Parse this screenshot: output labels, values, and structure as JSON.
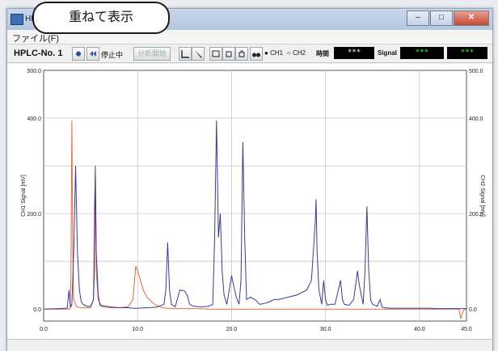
{
  "callout": {
    "text": "重ねて表示"
  },
  "window": {
    "title": "HPLC",
    "minimize": "–",
    "maximize": "□",
    "close": "✕"
  },
  "menu": {
    "file": "ファイル(F)"
  },
  "toolbar": {
    "device": "HPLC-No. 1",
    "status": "停止中",
    "disabled_button": "分析開始",
    "ch1": "CH1",
    "ch2": "CH2",
    "time_label": "時間",
    "time_value": "***",
    "signal_label": "Signal",
    "signal_ch1": "***",
    "signal_ch2": "***",
    "icons": [
      "record-dot-icon",
      "rewind-icon",
      "line-tool-icon",
      "pen-tool-icon",
      "window-icon",
      "stop-icon",
      "grab-icon",
      "binoculars-icon"
    ]
  },
  "chart_data": {
    "type": "line",
    "xlim": [
      0,
      45
    ],
    "x_ticks": [
      "0.0",
      "10.0",
      "20.0",
      "30.0",
      "40.0",
      "45.0"
    ],
    "x_tick_values": [
      0,
      10,
      20,
      30,
      40,
      45
    ],
    "left_axis": {
      "label": "CH1 Signal [mV]",
      "ylim": [
        -25,
        500
      ],
      "ticks": [
        "500.0",
        "400.0",
        "200.0",
        "0.0"
      ],
      "tick_values": [
        500,
        400,
        200,
        0
      ]
    },
    "right_axis": {
      "label": "CH2 Signal [mV]",
      "ylim": [
        -25,
        500
      ],
      "ticks": [
        "500.0",
        "400.0",
        "200.0",
        "0.0"
      ],
      "tick_values": [
        500,
        400,
        200,
        0
      ]
    },
    "grid": true,
    "colors": {
      "ch1": "#3a3a9a",
      "ch2": "#e86b3a"
    },
    "series": [
      {
        "key": "ch1",
        "x": [
          0,
          2.5,
          2.7,
          2.8,
          2.9,
          3.0,
          3.2,
          3.4,
          3.6,
          3.8,
          4.0,
          4.2,
          4.4,
          4.6,
          5.0,
          5.3,
          5.4,
          5.5,
          5.6,
          5.8,
          6.0,
          7,
          8,
          9,
          9.5,
          10,
          11,
          12,
          12.8,
          13.0,
          13.2,
          13.4,
          13.6,
          14.0,
          14.5,
          15.0,
          15.3,
          15.5,
          15.7,
          16.0,
          16.5,
          17,
          17.5,
          18.0,
          18.2,
          18.4,
          18.6,
          18.8,
          19.0,
          19.2,
          19.5,
          20.0,
          20.5,
          20.8,
          21.0,
          21.2,
          21.4,
          21.6,
          22.0,
          22.5,
          23.0,
          23.5,
          24.0,
          24.5,
          25,
          26,
          27,
          28,
          28.5,
          28.9,
          29.0,
          29.1,
          29.3,
          29.6,
          29.8,
          30.0,
          30.2,
          30.5,
          31,
          31.6,
          31.8,
          32.0,
          32.5,
          33,
          33.4,
          33.6,
          33.8,
          34.0,
          34.2,
          34.4,
          34.6,
          34.8,
          35.0,
          35.5,
          35.8,
          36.0,
          36.2,
          37,
          38,
          39,
          40,
          41,
          42,
          43,
          44,
          45
        ],
        "y": [
          0,
          2,
          40,
          15,
          5,
          10,
          120,
          300,
          120,
          40,
          15,
          10,
          8,
          6,
          6,
          20,
          80,
          300,
          120,
          30,
          8,
          5,
          3,
          3,
          2,
          2,
          3,
          4,
          10,
          40,
          140,
          40,
          10,
          5,
          40,
          38,
          28,
          12,
          8,
          6,
          5,
          5,
          6,
          10,
          150,
          395,
          150,
          200,
          80,
          30,
          10,
          70,
          25,
          10,
          60,
          350,
          150,
          20,
          25,
          20,
          10,
          12,
          15,
          20,
          20,
          25,
          30,
          40,
          60,
          180,
          230,
          120,
          40,
          10,
          60,
          20,
          8,
          10,
          10,
          60,
          20,
          10,
          8,
          20,
          80,
          50,
          30,
          10,
          80,
          215,
          80,
          20,
          10,
          6,
          20,
          5,
          3,
          2,
          2,
          2,
          2,
          2,
          1,
          1,
          1,
          1
        ]
      },
      {
        "key": "ch2",
        "x": [
          0,
          1,
          2,
          2.8,
          2.9,
          3.0,
          3.1,
          3.2,
          3.5,
          4.0,
          4.5,
          5.0,
          5.3,
          5.4,
          5.5,
          5.6,
          5.8,
          6.2,
          7,
          8,
          9,
          9.5,
          9.8,
          10.0,
          10.3,
          10.6,
          11.0,
          11.5,
          12.0,
          12.5,
          13,
          14,
          15,
          16,
          18,
          20,
          22,
          24,
          26,
          28,
          30,
          32,
          34,
          36,
          38,
          40,
          42,
          44.2,
          44.4,
          44.6,
          44.8,
          45
        ],
        "y": [
          0,
          0,
          0,
          0,
          60,
          395,
          120,
          20,
          5,
          3,
          3,
          3,
          20,
          220,
          280,
          80,
          20,
          5,
          3,
          3,
          5,
          20,
          90,
          80,
          60,
          40,
          25,
          15,
          8,
          4,
          2,
          1,
          1,
          1,
          0,
          0,
          0,
          0,
          0,
          0,
          0,
          0,
          0,
          0,
          0,
          0,
          0,
          0,
          -20,
          -5,
          0,
          0
        ]
      }
    ]
  }
}
